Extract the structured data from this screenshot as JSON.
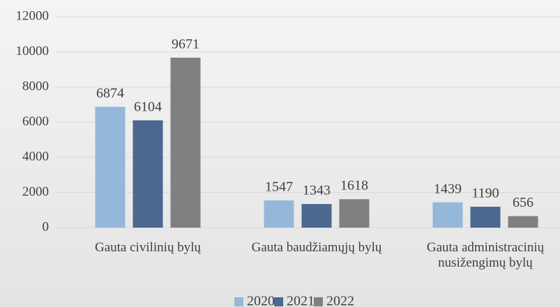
{
  "chart_data": {
    "type": "bar",
    "categories": [
      "Gauta civilinių bylų",
      "Gauta baudžiamųjų bylų",
      "Gauta administracinių nusižengimų bylų"
    ],
    "series": [
      {
        "name": "2020",
        "color": "#95b7d9",
        "values": [
          6874,
          1547,
          1439
        ]
      },
      {
        "name": "2021",
        "color": "#4a6890",
        "values": [
          6104,
          1343,
          1190
        ]
      },
      {
        "name": "2022",
        "color": "#808083",
        "values": [
          9671,
          1618,
          656
        ]
      }
    ],
    "ylim": [
      0,
      12000
    ],
    "yticks": [
      0,
      2000,
      4000,
      6000,
      8000,
      10000,
      12000
    ],
    "grid": true,
    "legend": "bottom"
  }
}
